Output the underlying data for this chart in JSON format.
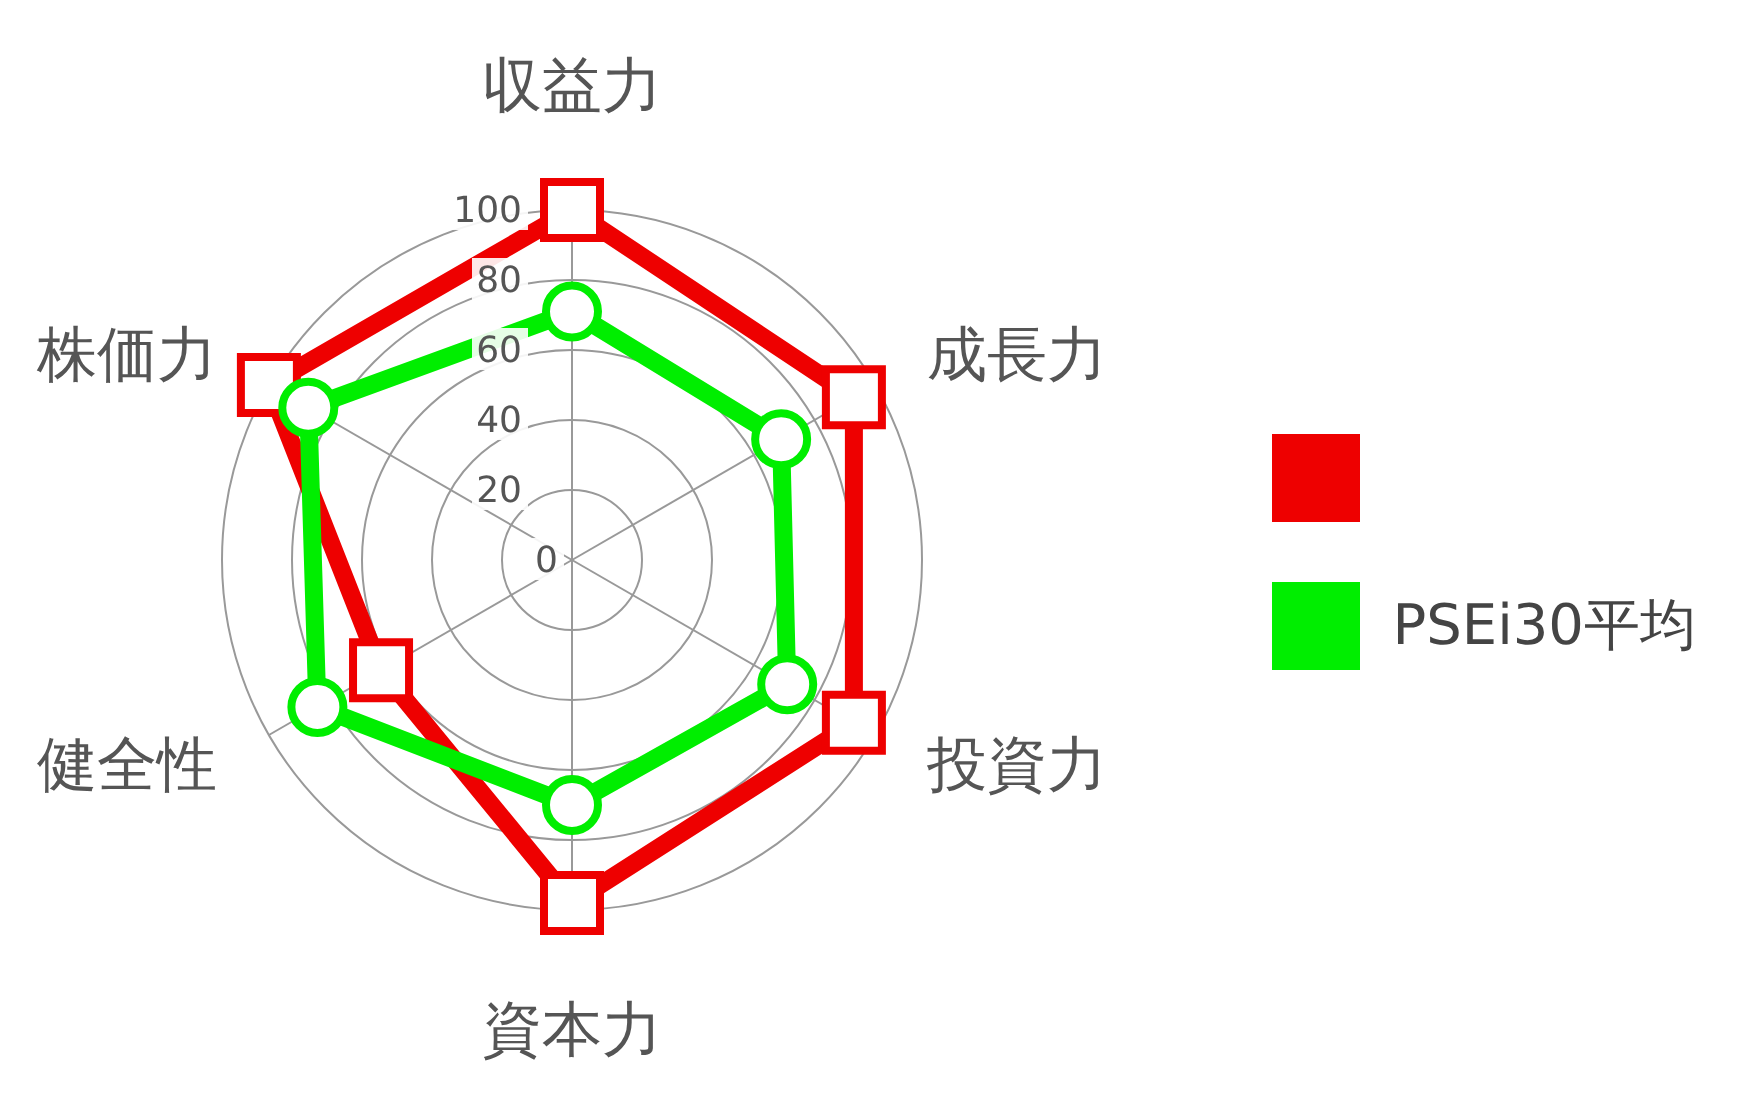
{
  "chart_data": {
    "type": "radar",
    "categories": [
      "収益力",
      "成長力",
      "投資力",
      "資本力",
      "健全性",
      "株価力"
    ],
    "series": [
      {
        "color": "#ee0000",
        "marker": "square",
        "values": [
          100,
          93,
          93,
          98,
          63,
          100
        ]
      },
      {
        "name": "PSEi30平均",
        "color": "#00ee00",
        "marker": "circle",
        "values": [
          71,
          69,
          71,
          70,
          84,
          87
        ]
      }
    ],
    "ylim": [
      0,
      100
    ],
    "yticks": [
      0,
      20,
      40,
      60,
      80,
      100
    ],
    "grid": true,
    "legend": "right"
  }
}
